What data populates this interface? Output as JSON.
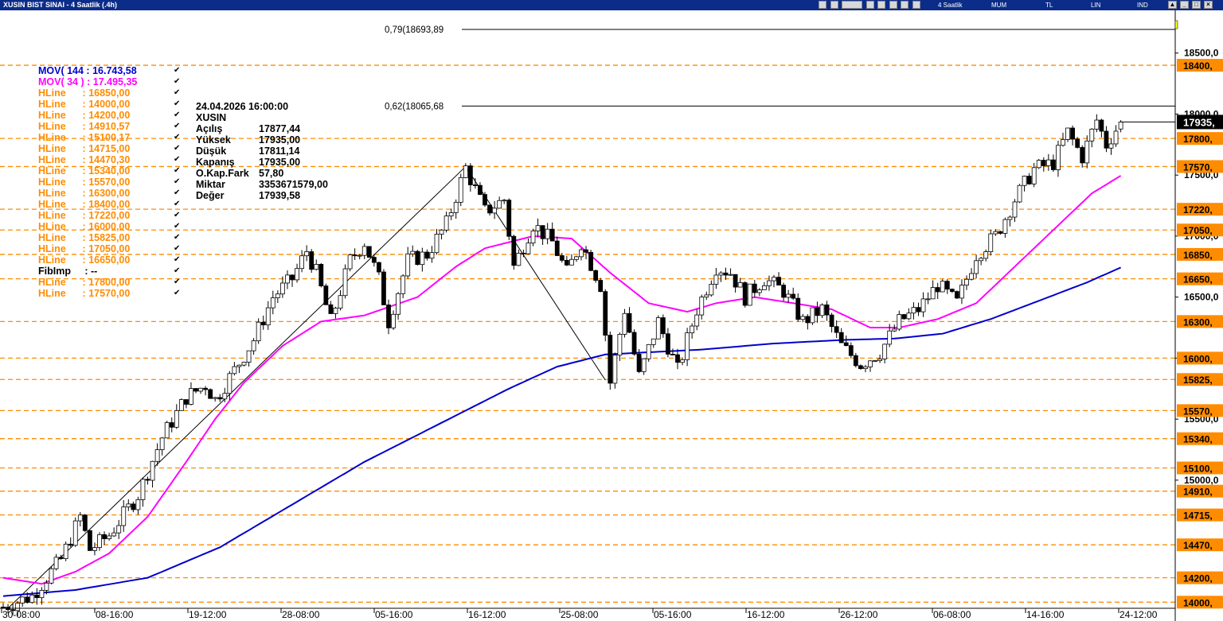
{
  "window": {
    "title": "XUSIN BIST SINAI - 4 Saatlik (.4h)",
    "menu": [
      "4 Saatlik",
      "MUM",
      "TL",
      "LIN",
      "IND"
    ]
  },
  "legend": [
    {
      "label": "MOV( 144 : 16.743,58",
      "color": "#0000cc"
    },
    {
      "label": "MOV( 34 ) : 17.495,35",
      "color": "#ff00ff"
    },
    {
      "label": "HLine      : 16850,00",
      "color": "#ff8c00"
    },
    {
      "label": "HLine      : 14000,00",
      "color": "#ff8c00"
    },
    {
      "label": "HLine      : 14200,00",
      "color": "#ff8c00"
    },
    {
      "label": "HLine      : 14910,57",
      "color": "#ff8c00"
    },
    {
      "label": "HLine      : 15100,17",
      "color": "#ff8c00"
    },
    {
      "label": "HLine      : 14715,00",
      "color": "#ff8c00"
    },
    {
      "label": "HLine      : 14470,30",
      "color": "#ff8c00"
    },
    {
      "label": "HLine      : 15340,00",
      "color": "#ff8c00"
    },
    {
      "label": "HLine      : 15570,00",
      "color": "#ff8c00"
    },
    {
      "label": "HLine      : 16300,00",
      "color": "#ff8c00"
    },
    {
      "label": "HLine      : 18400,00",
      "color": "#ff8c00"
    },
    {
      "label": "HLine      : 17220,00",
      "color": "#ff8c00"
    },
    {
      "label": "HLine      : 16000,00",
      "color": "#ff8c00"
    },
    {
      "label": "HLine      : 15825,00",
      "color": "#ff8c00"
    },
    {
      "label": "HLine      : 17050,00",
      "color": "#ff8c00"
    },
    {
      "label": "HLine      : 16650,00",
      "color": "#ff8c00"
    },
    {
      "label": "FibImp     : --",
      "color": "#000000"
    },
    {
      "label": "HLine      : 17800,00",
      "color": "#ff8c00"
    },
    {
      "label": "HLine      : 17570,00",
      "color": "#ff8c00"
    }
  ],
  "legend_check": "✔",
  "infobox": {
    "datetime": "24.04.2026  16:00:00",
    "symbol": "XUSIN",
    "rows": [
      {
        "k": "Açılış",
        "v": "17877,44"
      },
      {
        "k": "Yüksek",
        "v": "17935,00"
      },
      {
        "k": "Düşük",
        "v": "17811,14"
      },
      {
        "k": "Kapanış",
        "v": "17935,00"
      },
      {
        "k": "O.Kap.Fark",
        "v": "57,80"
      },
      {
        "k": "Miktar",
        "v": "3353671579,00"
      },
      {
        "k": "Değer",
        "v": "17939,58"
      }
    ]
  },
  "chart_data": {
    "type": "candlestick",
    "title": "XUSIN BIST SINAI - 4 Saatlik (.4h)",
    "ylim": [
      13950,
      18850
    ],
    "y_tick_labels": [
      {
        "value": 18500,
        "label": "18500,0"
      },
      {
        "value": 18000,
        "label": "18000,0"
      },
      {
        "value": 17500,
        "label": "17500,0"
      },
      {
        "value": 17000,
        "label": "17000,0"
      },
      {
        "value": 16500,
        "label": "16500,0"
      },
      {
        "value": 16000,
        "label": "16000,0"
      },
      {
        "value": 15500,
        "label": "15500,0"
      },
      {
        "value": 15000,
        "label": "15000,0"
      }
    ],
    "x_tick_labels": [
      "30-08:00",
      "08-16:00",
      "19-12:00",
      "28-08:00",
      "05-16:00",
      "16-12:00",
      "25-08:00",
      "05-16:00",
      "16-12:00",
      "26-12:00",
      "06-08:00",
      "14-16:00",
      "24-12:00"
    ],
    "hlines": [
      {
        "value": 18400,
        "label": "18400,"
      },
      {
        "value": 17800,
        "label": "17800,"
      },
      {
        "value": 17570,
        "label": "17570,"
      },
      {
        "value": 17220,
        "label": "17220,"
      },
      {
        "value": 17050,
        "label": "17050,"
      },
      {
        "value": 16850,
        "label": "16850,"
      },
      {
        "value": 16650,
        "label": "16650,"
      },
      {
        "value": 16300,
        "label": "16300,"
      },
      {
        "value": 16000,
        "label": "16000,"
      },
      {
        "value": 15825,
        "label": "15825,"
      },
      {
        "value": 15570,
        "label": "15570,"
      },
      {
        "value": 15340,
        "label": "15340,"
      },
      {
        "value": 15100,
        "label": "15100,"
      },
      {
        "value": 14910,
        "label": "14910,"
      },
      {
        "value": 14715,
        "label": "14715,"
      },
      {
        "value": 14470,
        "label": "14470,"
      },
      {
        "value": 14200,
        "label": "14200,"
      },
      {
        "value": 14000,
        "label": "14000,"
      }
    ],
    "last_price": {
      "value": 17935,
      "label": "17935,"
    },
    "fib_levels": [
      {
        "value": 18693.89,
        "label": "0,79(18693,89"
      },
      {
        "value": 18065.68,
        "label": "0,62(18065,68"
      }
    ],
    "trendlines": [
      {
        "x1": 1,
        "y1": 13950,
        "x2": 96,
        "y2": 17570
      },
      {
        "x1": 96,
        "y1": 17570,
        "x2": 125,
        "y2": 15820
      }
    ],
    "ohlc_anchors": [
      [
        0,
        13960
      ],
      [
        6,
        14050
      ],
      [
        12,
        14350
      ],
      [
        16,
        14700
      ],
      [
        18,
        14430
      ],
      [
        22,
        14550
      ],
      [
        28,
        14880
      ],
      [
        33,
        15350
      ],
      [
        38,
        15680
      ],
      [
        42,
        15780
      ],
      [
        44,
        15660
      ],
      [
        48,
        15900
      ],
      [
        52,
        16150
      ],
      [
        56,
        16500
      ],
      [
        60,
        16650
      ],
      [
        63,
        16880
      ],
      [
        65,
        16700
      ],
      [
        68,
        16300
      ],
      [
        72,
        16800
      ],
      [
        75,
        16950
      ],
      [
        78,
        16650
      ],
      [
        80,
        16300
      ],
      [
        84,
        16800
      ],
      [
        88,
        16850
      ],
      [
        92,
        17100
      ],
      [
        96,
        17560
      ],
      [
        100,
        17200
      ],
      [
        104,
        17300
      ],
      [
        106,
        16750
      ],
      [
        110,
        17100
      ],
      [
        114,
        16950
      ],
      [
        117,
        16700
      ],
      [
        120,
        16950
      ],
      [
        124,
        16600
      ],
      [
        126,
        15800
      ],
      [
        129,
        16400
      ],
      [
        132,
        15850
      ],
      [
        136,
        16300
      ],
      [
        140,
        15900
      ],
      [
        144,
        16400
      ],
      [
        148,
        16750
      ],
      [
        151,
        16700
      ],
      [
        154,
        16500
      ],
      [
        158,
        16650
      ],
      [
        162,
        16550
      ],
      [
        166,
        16300
      ],
      [
        170,
        16400
      ],
      [
        174,
        16100
      ],
      [
        178,
        15950
      ],
      [
        182,
        16050
      ],
      [
        186,
        16300
      ],
      [
        190,
        16400
      ],
      [
        194,
        16600
      ],
      [
        198,
        16450
      ],
      [
        202,
        16850
      ],
      [
        206,
        17000
      ],
      [
        210,
        17300
      ],
      [
        214,
        17550
      ],
      [
        218,
        17600
      ],
      [
        221,
        17850
      ],
      [
        224,
        17650
      ],
      [
        227,
        17950
      ],
      [
        229,
        17750
      ],
      [
        232,
        17935
      ]
    ],
    "ma34_anchors": [
      [
        0,
        14200
      ],
      [
        8,
        14150
      ],
      [
        15,
        14250
      ],
      [
        22,
        14400
      ],
      [
        30,
        14700
      ],
      [
        38,
        15150
      ],
      [
        44,
        15500
      ],
      [
        50,
        15800
      ],
      [
        58,
        16100
      ],
      [
        66,
        16300
      ],
      [
        75,
        16350
      ],
      [
        86,
        16500
      ],
      [
        94,
        16750
      ],
      [
        100,
        16900
      ],
      [
        110,
        17000
      ],
      [
        118,
        16980
      ],
      [
        126,
        16700
      ],
      [
        134,
        16450
      ],
      [
        142,
        16380
      ],
      [
        148,
        16450
      ],
      [
        156,
        16500
      ],
      [
        164,
        16450
      ],
      [
        172,
        16400
      ],
      [
        180,
        16250
      ],
      [
        186,
        16250
      ],
      [
        194,
        16320
      ],
      [
        202,
        16450
      ],
      [
        210,
        16750
      ],
      [
        218,
        17050
      ],
      [
        226,
        17350
      ],
      [
        232,
        17495
      ]
    ],
    "ma144_anchors": [
      [
        0,
        14050
      ],
      [
        15,
        14100
      ],
      [
        30,
        14200
      ],
      [
        45,
        14450
      ],
      [
        60,
        14800
      ],
      [
        75,
        15150
      ],
      [
        90,
        15450
      ],
      [
        105,
        15750
      ],
      [
        115,
        15930
      ],
      [
        125,
        16030
      ],
      [
        135,
        16050
      ],
      [
        145,
        16070
      ],
      [
        160,
        16120
      ],
      [
        175,
        16150
      ],
      [
        185,
        16160
      ],
      [
        195,
        16200
      ],
      [
        205,
        16320
      ],
      [
        215,
        16470
      ],
      [
        225,
        16620
      ],
      [
        232,
        16743
      ]
    ]
  }
}
